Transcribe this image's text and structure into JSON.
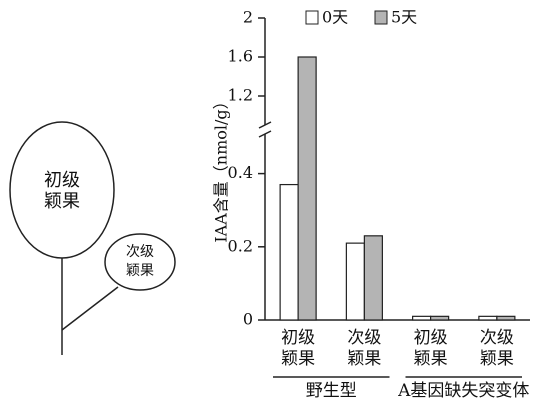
{
  "chart_data": {
    "type": "bar",
    "ylabel": "IAA含量（nmol/g）",
    "categories": [
      "初级颖果",
      "次级颖果",
      "初级颖果",
      "次级颖果"
    ],
    "groups": [
      "野生型",
      "A基因缺失突变体"
    ],
    "series": [
      {
        "name": "0天",
        "color": "#ffffff",
        "values": [
          0.37,
          0.21,
          0.01,
          0.01
        ]
      },
      {
        "name": "5天",
        "color": "#b4b4b4",
        "values": [
          1.6,
          0.23,
          0.01,
          0.01
        ]
      }
    ],
    "ylim": [
      0,
      2
    ],
    "y_break": [
      0.5,
      1.0
    ],
    "yticks": [
      0,
      0.2,
      0.4,
      1.2,
      1.6,
      2
    ]
  },
  "diagram": {
    "labels": [
      "初级颖果",
      "次级颖果"
    ]
  }
}
